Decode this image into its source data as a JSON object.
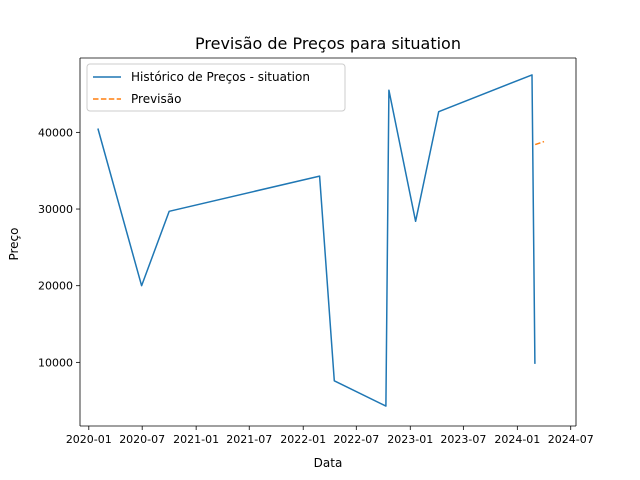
{
  "chart_data": {
    "type": "line",
    "title": "Previsão de Preços para situation",
    "xlabel": "Data",
    "ylabel": "Preço",
    "x_tick_labels": [
      "2020-01",
      "2020-07",
      "2021-01",
      "2021-07",
      "2022-01",
      "2022-07",
      "2023-01",
      "2023-07",
      "2024-01",
      "2024-07"
    ],
    "x_ticks": [
      "2020-01-01",
      "2020-07-01",
      "2021-01-01",
      "2021-07-01",
      "2022-01-01",
      "2022-07-01",
      "2023-01-01",
      "2023-07-01",
      "2024-01-01",
      "2024-07-01"
    ],
    "y_tick_labels": [
      "10000",
      "20000",
      "30000",
      "40000"
    ],
    "y_ticks": [
      10000,
      20000,
      30000,
      40000
    ],
    "xlim": [
      "2019-12-02",
      "2024-07-19"
    ],
    "ylim": [
      1700,
      49700
    ],
    "grid": false,
    "legend_position": "top-left",
    "series": [
      {
        "name": "Histórico de Preços - situation",
        "color": "#1f77b4",
        "style": "solid",
        "points": [
          {
            "x": "2020-02-01",
            "y": 40500
          },
          {
            "x": "2020-06-29",
            "y": 20000
          },
          {
            "x": "2020-10-01",
            "y": 29700
          },
          {
            "x": "2022-02-26",
            "y": 34300
          },
          {
            "x": "2022-04-17",
            "y": 7600
          },
          {
            "x": "2022-10-10",
            "y": 4300
          },
          {
            "x": "2022-10-20",
            "y": 45500
          },
          {
            "x": "2023-01-19",
            "y": 28400
          },
          {
            "x": "2023-04-08",
            "y": 42700
          },
          {
            "x": "2024-02-20",
            "y": 47500
          },
          {
            "x": "2024-03-01",
            "y": 9800
          }
        ]
      },
      {
        "name": "Previsão",
        "color": "#ff7f0e",
        "style": "dashed",
        "points": [
          {
            "x": "2024-03-02",
            "y": 38400
          },
          {
            "x": "2024-04-01",
            "y": 38800
          }
        ]
      }
    ]
  }
}
